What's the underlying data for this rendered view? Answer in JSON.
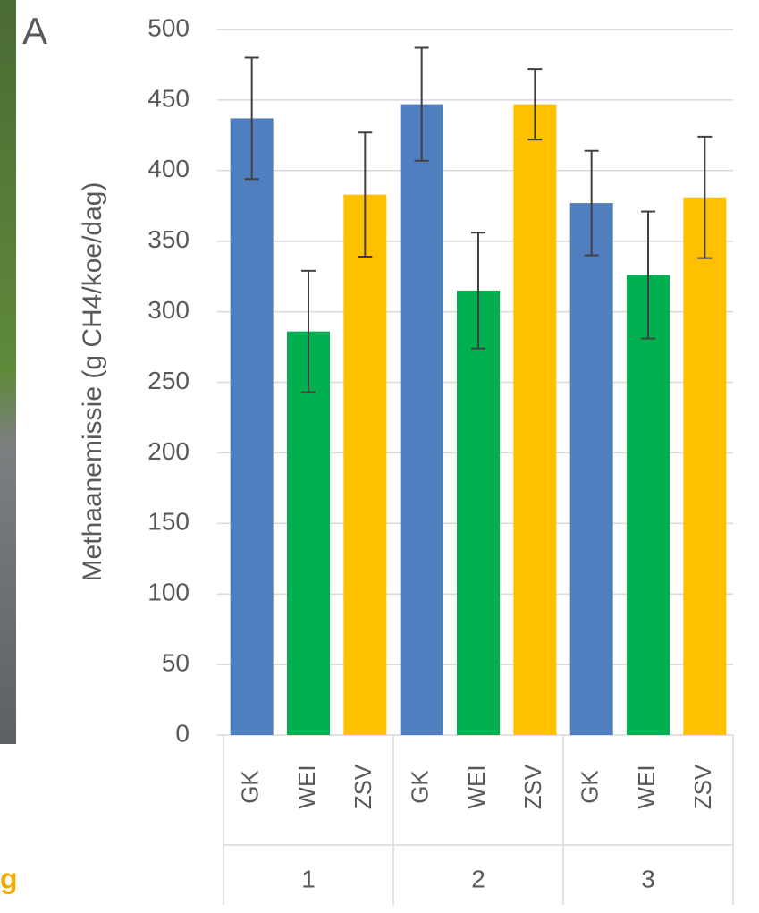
{
  "panel_label": "A",
  "cropped_text": "g",
  "chart_data": {
    "type": "bar",
    "y_label": "Methaanemissie (g CH4/koe/dag)",
    "categories": [
      "GK",
      "WEI",
      "ZSV",
      "GK",
      "WEI",
      "ZSV",
      "GK",
      "WEI",
      "ZSV"
    ],
    "groups": [
      "1",
      "2",
      "3"
    ],
    "values": [
      437,
      286,
      383,
      447,
      315,
      447,
      377,
      326,
      381
    ],
    "errors": [
      43,
      43,
      44,
      40,
      41,
      25,
      37,
      45,
      43
    ],
    "colors": [
      "#4f7fbf",
      "#00b050",
      "#ffc000",
      "#4f7fbf",
      "#00b050",
      "#ffc000",
      "#4f7fbf",
      "#00b050",
      "#ffc000"
    ],
    "ylim": [
      0,
      500
    ],
    "yticks": [
      0,
      50,
      100,
      150,
      200,
      250,
      300,
      350,
      400,
      450,
      500
    ],
    "grid": true
  }
}
